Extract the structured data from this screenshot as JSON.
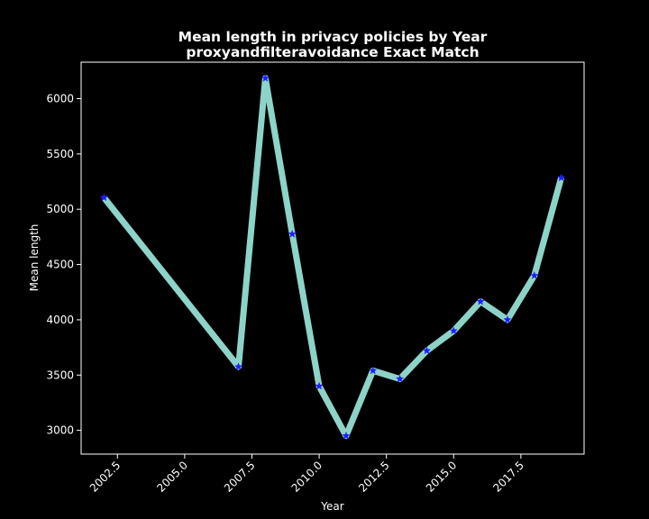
{
  "chart_data": {
    "type": "line",
    "title": "Mean length in privacy policies by Year",
    "subtitle": "proxyandfilteravoidance Exact Match",
    "xlabel": "Year",
    "ylabel": "Mean length",
    "xlim": [
      2001.15,
      2019.85
    ],
    "ylim": [
      2785,
      6330
    ],
    "xticks": [
      2002.5,
      2005.0,
      2007.5,
      2010.0,
      2012.5,
      2015.0,
      2017.5
    ],
    "xtick_labels": [
      "2002.5",
      "2005.0",
      "2007.5",
      "2010.0",
      "2012.5",
      "2015.0",
      "2017.5"
    ],
    "yticks": [
      3000,
      3500,
      4000,
      4500,
      5000,
      5500,
      6000
    ],
    "ytick_labels": [
      "3000",
      "3500",
      "4000",
      "4500",
      "5000",
      "5500",
      "6000"
    ],
    "grid": false,
    "series": [
      {
        "x": [
          2002,
          2007,
          2008,
          2009,
          2010,
          2011,
          2012,
          2013,
          2014,
          2015,
          2016,
          2017,
          2018,
          2019
        ],
        "values": [
          5105,
          3575,
          6185,
          4775,
          3400,
          2950,
          3540,
          3465,
          3720,
          3900,
          4165,
          4000,
          4400,
          5285
        ],
        "line_color": "#8dd3c7",
        "marker": "star",
        "marker_color": "#1f1fff"
      }
    ]
  },
  "colors": {
    "background": "#000000",
    "axes": "#ffffff",
    "text": "#ffffff"
  }
}
